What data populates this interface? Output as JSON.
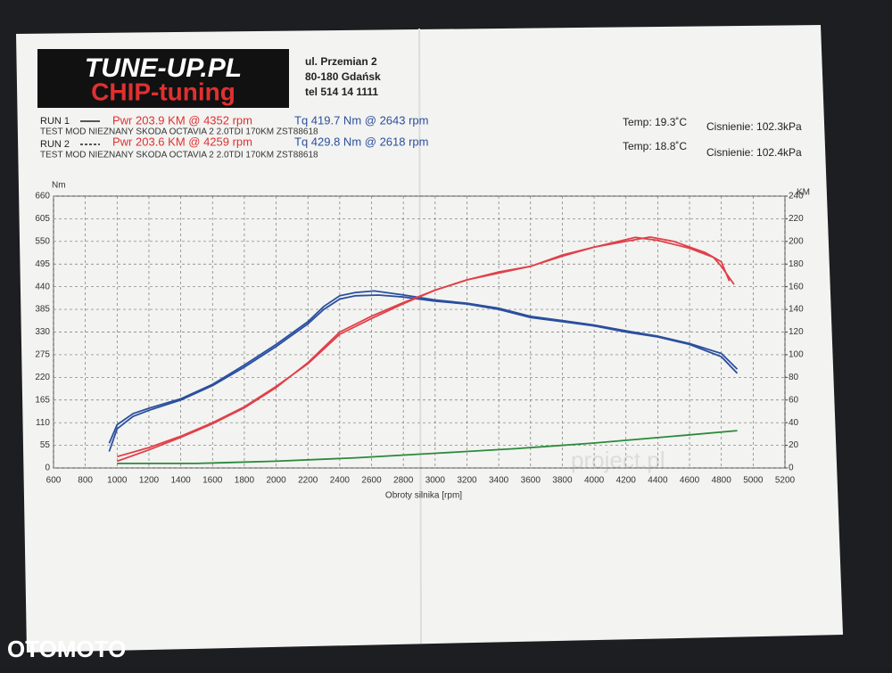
{
  "header": {
    "logo_top": "TUNE-UP.PL",
    "logo_bottom": "CHIP-tuning",
    "address": [
      "ul. Przemian 2",
      "80-180 Gdańsk",
      "tel 514 14 1111"
    ],
    "runs": [
      {
        "label": "RUN 1",
        "pwr": "Pwr 203.9 KM @ 4352 rpm",
        "tq": "Tq 419.7 Nm @ 2643 rpm",
        "desc": "TEST MOD NIEZNANY SKODA OCTAVIA 2 2.0TDI 170KM ZST88618",
        "temp": "Temp: 19.3˚C",
        "pressure": "Cisnienie: 102.3kPa"
      },
      {
        "label": "RUN 2",
        "pwr": "Pwr 203.6 KM @ 4259 rpm",
        "tq": "Tq 429.8 Nm @ 2618 rpm",
        "desc": "TEST MOD NIEZNANY SKODA OCTAVIA 2 2.0TDI 170KM ZST88618",
        "temp": "Temp: 18.8˚C",
        "pressure": "Cisnienie: 102.4kPa"
      }
    ],
    "watermark": "project.pl",
    "site_mark": "OTOMOTO"
  },
  "chart_data": {
    "type": "line",
    "y_label": "Nm",
    "y2_label": "KM",
    "x_label": "Obroty silnika [rpm]",
    "xlim": [
      600,
      5200
    ],
    "xticks": [
      600,
      800,
      1000,
      1200,
      1400,
      1600,
      1800,
      2000,
      2200,
      2400,
      2600,
      2800,
      3000,
      3200,
      3400,
      3600,
      3800,
      4000,
      4200,
      4400,
      4600,
      4800,
      5000,
      5200
    ],
    "ylim": [
      0,
      660
    ],
    "yticks": [
      0,
      55,
      110,
      165,
      220,
      275,
      330,
      385,
      440,
      495,
      550,
      605,
      660
    ],
    "y2lim": [
      0,
      240
    ],
    "y2ticks": [
      0,
      20,
      40,
      60,
      80,
      100,
      120,
      140,
      160,
      180,
      200,
      220,
      240
    ],
    "grid": true,
    "series": [
      {
        "color": "#2a4f9e",
        "x": [
          950,
          1000,
          1100,
          1200,
          1400,
          1600,
          1800,
          2000,
          2200,
          2300,
          2400,
          2500,
          2643,
          2800,
          3000,
          3200,
          3400,
          3600,
          3800,
          4000,
          4200,
          4400,
          4600,
          4800,
          4900
        ],
        "values": [
          40,
          95,
          125,
          140,
          165,
          200,
          245,
          295,
          350,
          385,
          410,
          418,
          419.7,
          415,
          405,
          398,
          385,
          365,
          355,
          345,
          330,
          318,
          300,
          270,
          230
        ]
      },
      {
        "color": "#2a4f9e",
        "x": [
          950,
          1000,
          1100,
          1200,
          1400,
          1600,
          1800,
          2000,
          2200,
          2300,
          2400,
          2500,
          2618,
          2800,
          3000,
          3200,
          3400,
          3600,
          3800,
          4000,
          4200,
          4400,
          4600,
          4800,
          4900
        ],
        "values": [
          60,
          105,
          132,
          145,
          168,
          203,
          250,
          300,
          355,
          392,
          418,
          426,
          429.8,
          420,
          408,
          400,
          388,
          368,
          358,
          347,
          333,
          320,
          302,
          278,
          240
        ]
      },
      {
        "color": "#e0404a",
        "axis": "y2",
        "x": [
          1000,
          1200,
          1400,
          1600,
          1800,
          2000,
          2200,
          2400,
          2600,
          2800,
          3000,
          3200,
          3400,
          3600,
          3800,
          4000,
          4200,
          4352,
          4500,
          4700,
          4800,
          4850
        ],
        "values": [
          10,
          18,
          28,
          40,
          54,
          72,
          92,
          118,
          132,
          145,
          157,
          166,
          173,
          178,
          188,
          195,
          200,
          203.9,
          200,
          190,
          182,
          165
        ]
      },
      {
        "color": "#e0404a",
        "axis": "y2",
        "x": [
          1000,
          1200,
          1400,
          1600,
          1800,
          2000,
          2200,
          2400,
          2600,
          2800,
          3000,
          3200,
          3400,
          3600,
          3800,
          4000,
          4259,
          4400,
          4600,
          4750,
          4800,
          4880
        ],
        "values": [
          6,
          16,
          27,
          39,
          53,
          71,
          93,
          120,
          134,
          146,
          157,
          166,
          172,
          178,
          187,
          195,
          203.6,
          201,
          194,
          186,
          178,
          162
        ]
      },
      {
        "color": "#2a8a3a",
        "axis": "y2",
        "x": [
          1000,
          1500,
          2000,
          2500,
          3000,
          3500,
          4000,
          4500,
          4900
        ],
        "values": [
          4,
          4,
          6,
          9,
          13,
          17,
          22,
          28,
          33
        ]
      }
    ]
  }
}
